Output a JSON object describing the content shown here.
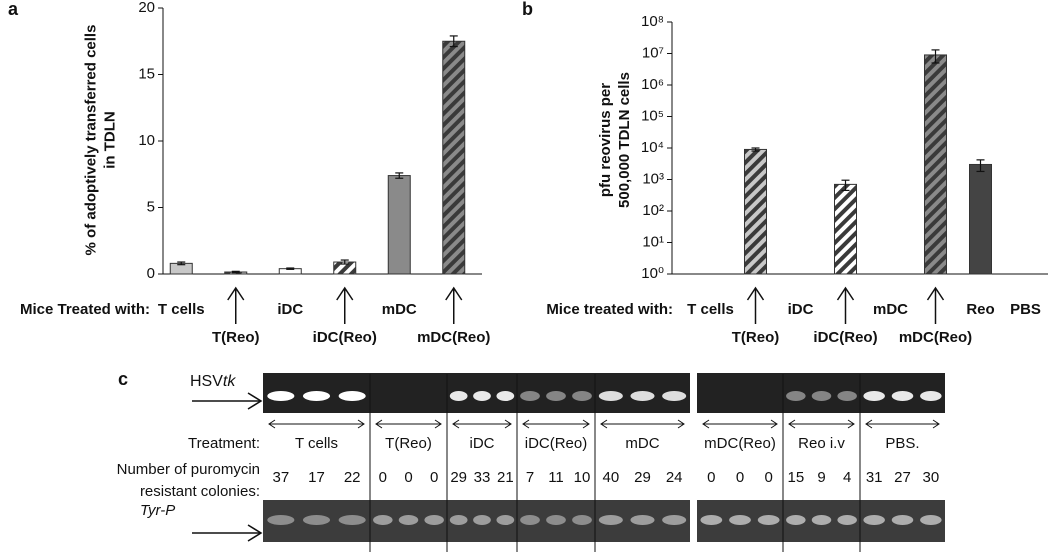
{
  "chart_data": [
    {
      "type": "bar",
      "panel": "a",
      "ylabel": "% of adoptively transferred cells in TDLN",
      "category_prefix": "Mice Treated with:",
      "categories": [
        "T cells",
        "T(Reo)",
        "iDC",
        "iDC(Reo)",
        "mDC",
        "mDC(Reo)"
      ],
      "values": [
        0.8,
        0.15,
        0.4,
        0.9,
        7.4,
        17.5
      ],
      "errors": [
        0.1,
        0.05,
        0.05,
        0.15,
        0.2,
        0.4
      ],
      "colors": [
        "#c8c8c8",
        "#c8c8c8",
        "#ffffff",
        "#ffffff",
        "#8a8a8a",
        "#8a8a8a"
      ],
      "hatched": [
        false,
        true,
        false,
        true,
        false,
        true
      ],
      "ylim": [
        0,
        20
      ],
      "yticks": [
        0,
        5,
        10,
        15,
        20
      ],
      "log": false
    },
    {
      "type": "bar",
      "panel": "b",
      "ylabel": "pfu reovirus per 500,000 TDLN cells",
      "category_prefix": "Mice treated with:",
      "categories": [
        "T cells",
        "T(Reo)",
        "iDC",
        "iDC(Reo)",
        "mDC",
        "mDC(Reo)",
        "Reo",
        "PBS"
      ],
      "values": [
        null,
        9000,
        null,
        700,
        null,
        9000000,
        3000,
        null
      ],
      "errors": [
        null,
        1000,
        null,
        250,
        null,
        4000000,
        1200,
        null
      ],
      "colors": [
        null,
        "#c8c8c8",
        null,
        "#ffffff",
        null,
        "#8a8a8a",
        "#444444",
        null
      ],
      "hatched": [
        false,
        true,
        false,
        true,
        false,
        true,
        false,
        false
      ],
      "ylim": [
        1,
        100000000
      ],
      "yticks": [
        {
          "value": 1,
          "label": "10⁰"
        },
        {
          "value": 10,
          "label": "10¹"
        },
        {
          "value": 100,
          "label": "10²"
        },
        {
          "value": 1000,
          "label": "10³"
        },
        {
          "value": 10000,
          "label": "10⁴"
        },
        {
          "value": 100000,
          "label": "10⁵"
        },
        {
          "value": 1000000,
          "label": "10⁶"
        },
        {
          "value": 10000000,
          "label": "10⁷"
        },
        {
          "value": 100000000,
          "label": "10⁸"
        }
      ],
      "log": true
    }
  ],
  "gel": {
    "panel": "c",
    "marker_top": {
      "prefix": "HSV",
      "italic": "tk"
    },
    "marker_bottom": "Tyr-P",
    "treatment_label": "Treatment:",
    "colonies_label": [
      "Number of puromycin",
      "resistant colonies:"
    ],
    "groups": [
      {
        "name": "T cells",
        "colonies": [
          37,
          17,
          22
        ]
      },
      {
        "name": "T(Reo)",
        "colonies": [
          0,
          0,
          0
        ]
      },
      {
        "name": "iDC",
        "colonies": [
          29,
          33,
          21
        ]
      },
      {
        "name": "iDC(Reo)",
        "colonies": [
          7,
          11,
          10
        ]
      },
      {
        "name": "mDC",
        "colonies": [
          40,
          29,
          24
        ]
      },
      {
        "name": "mDC(Reo)",
        "colonies": [
          0,
          0,
          0
        ]
      },
      {
        "name": "Reo i.v",
        "colonies": [
          15,
          9,
          4
        ]
      },
      {
        "name": "PBS.",
        "colonies": [
          31,
          27,
          30
        ]
      }
    ]
  }
}
